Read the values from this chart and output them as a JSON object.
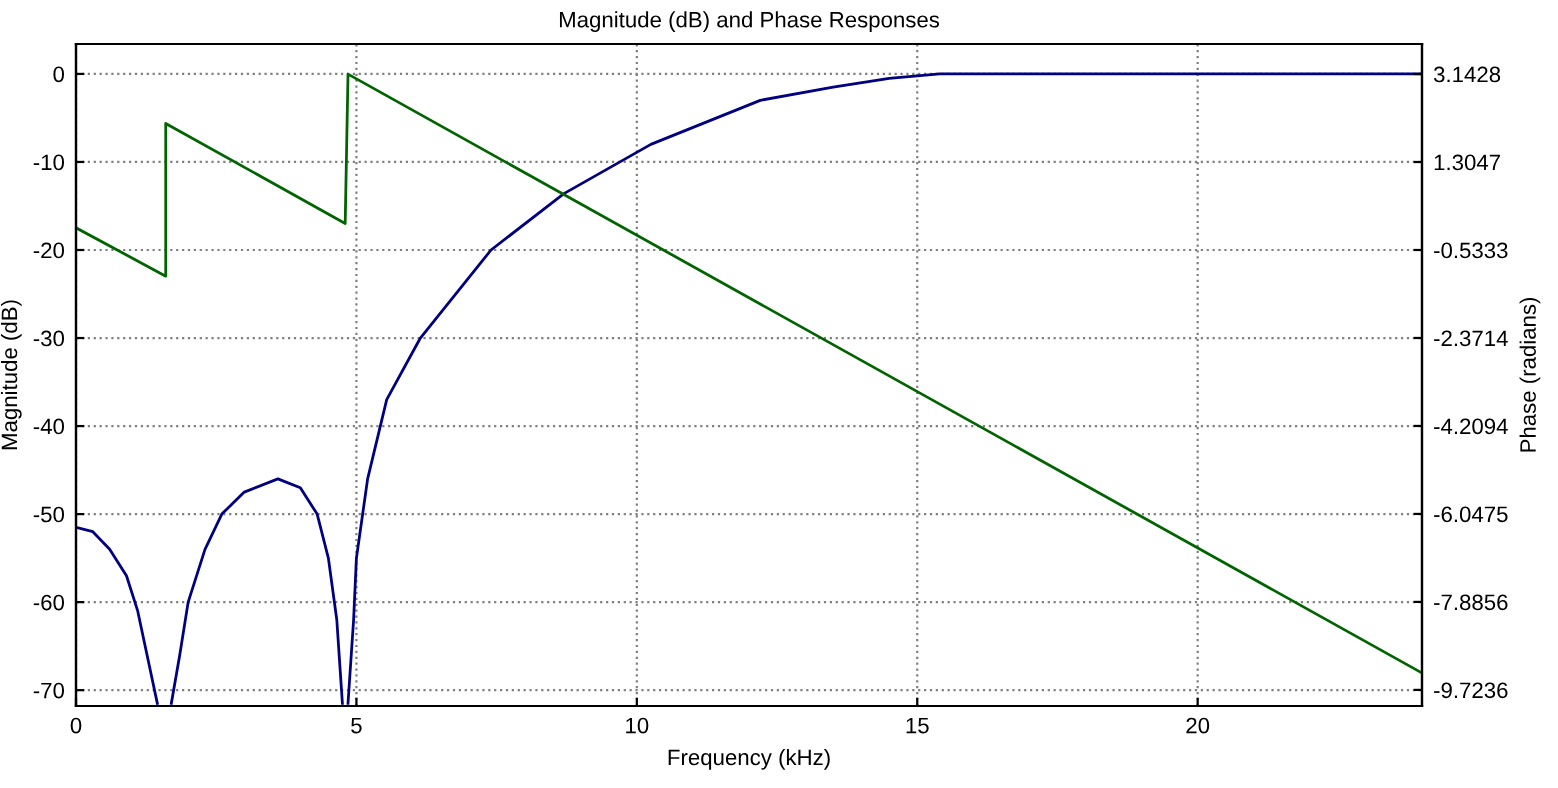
{
  "chart_data": {
    "type": "line",
    "title": "Magnitude (dB) and Phase Responses",
    "xlabel": "Frequency (kHz)",
    "ylabel": "Magnitude (dB)",
    "y2label": "Phase (radians)",
    "xlim": [
      0,
      24
    ],
    "xticks": [
      0,
      5,
      10,
      15,
      20
    ],
    "ylim": [
      -71.8,
      3.4
    ],
    "yticks": [
      0,
      -10,
      -20,
      -30,
      -40,
      -50,
      -60,
      -70
    ],
    "y2lim": [
      -10.06,
      3.77
    ],
    "y2ticks": [
      3.1428,
      1.3047,
      -0.5333,
      -2.3714,
      -4.2094,
      -6.0475,
      -7.8856,
      -9.7236
    ],
    "grid": true,
    "marker": "none",
    "line_style": "solid",
    "series": [
      {
        "color": "#000080",
        "x": [
          0,
          0.3,
          0.6,
          0.9,
          1.1,
          1.3,
          1.45,
          1.57,
          1.7,
          1.85,
          2.0,
          2.3,
          2.6,
          3.0,
          3.6,
          4.0,
          4.3,
          4.5,
          4.65,
          4.75,
          4.8,
          4.85,
          4.95,
          5.0,
          5.2,
          5.54,
          6.14,
          7.4,
          8.7,
          10.25,
          12.2,
          13.5,
          14.5,
          15.4,
          24
        ],
        "values": [
          -51.5,
          -52,
          -54,
          -57,
          -61,
          -67,
          -71.5,
          null,
          -71.5,
          -66,
          -60,
          -54,
          -50,
          -47.5,
          -46,
          -47,
          -50,
          -55,
          -62,
          -71.5,
          null,
          -71.5,
          -62,
          -55,
          -46,
          -37,
          -30,
          -20,
          -13.6,
          -8,
          -3,
          -1.5,
          -0.5,
          0,
          0
        ]
      },
      {
        "color": "#006400",
        "axis": "y2",
        "x": [
          0,
          1.6,
          1.6,
          4.8,
          4.85,
          24
        ],
        "values": [
          -0.07,
          -1.08,
          2.11,
          0.02,
          3.14,
          -9.37
        ]
      }
    ]
  }
}
